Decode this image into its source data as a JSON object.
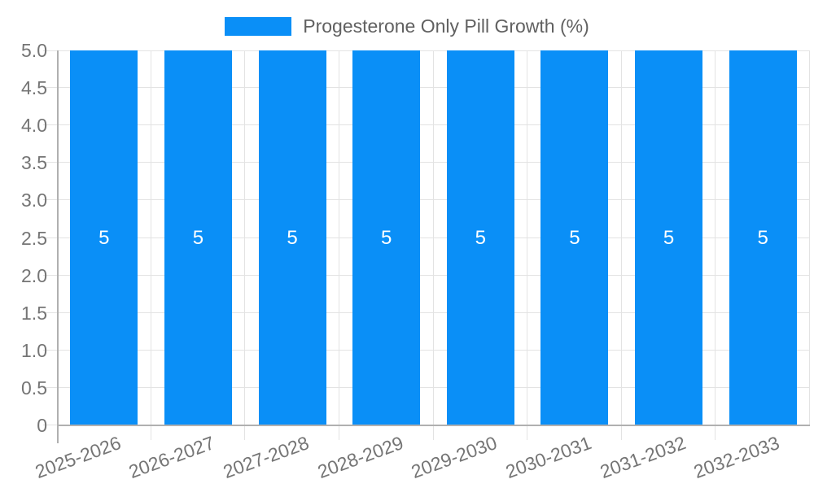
{
  "chart_data": {
    "type": "bar",
    "title": "",
    "legend": {
      "label": "Progesterone Only Pill Growth (%)",
      "position": "top-center"
    },
    "categories": [
      "2025-2026",
      "2026-2027",
      "2027-2028",
      "2028-2029",
      "2029-2030",
      "2030-2031",
      "2031-2032",
      "2032-2033"
    ],
    "series": [
      {
        "name": "Progesterone Only Pill Growth (%)",
        "values": [
          5,
          5,
          5,
          5,
          5,
          5,
          5,
          5
        ],
        "bar_labels": [
          "5",
          "5",
          "5",
          "5",
          "5",
          "5",
          "5",
          "5"
        ]
      }
    ],
    "xlabel": "",
    "ylabel": "",
    "ylim": [
      0,
      5
    ],
    "yticks": [
      {
        "v": 0,
        "label": "0"
      },
      {
        "v": 0.5,
        "label": "0.5"
      },
      {
        "v": 1,
        "label": "1.0"
      },
      {
        "v": 1.5,
        "label": "1.5"
      },
      {
        "v": 2,
        "label": "2.0"
      },
      {
        "v": 2.5,
        "label": "2.5"
      },
      {
        "v": 3,
        "label": "3.0"
      },
      {
        "v": 3.5,
        "label": "3.5"
      },
      {
        "v": 4,
        "label": "4.0"
      },
      {
        "v": 4.5,
        "label": "4.5"
      },
      {
        "v": 5,
        "label": "5.0"
      }
    ],
    "grid": true,
    "x_label_rotation_deg": -20
  },
  "colors": {
    "bar": "#0a8ff7",
    "grid": "#e3e3e3",
    "axis": "#b0b0b0",
    "tick_label": "#757575",
    "legend_text": "#616161",
    "bar_label": "#ffffff",
    "background": "#ffffff"
  }
}
